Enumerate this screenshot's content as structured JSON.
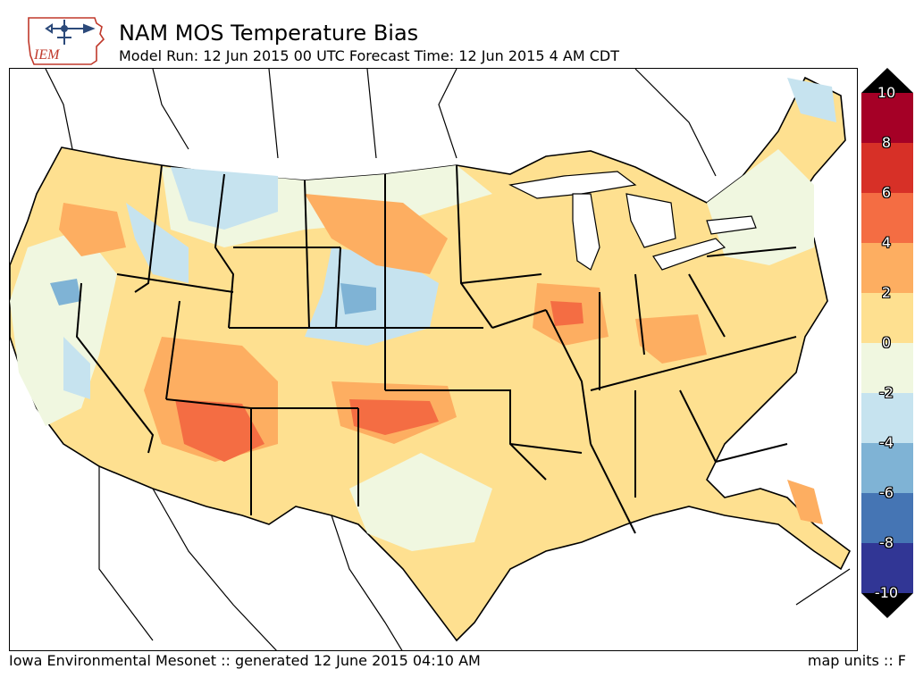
{
  "header": {
    "logo_text": "IEM",
    "title": "NAM MOS Temperature Bias",
    "subtitle": "Model Run: 12 Jun 2015 00 UTC Forecast Time: 12 Jun 2015 4 AM CDT"
  },
  "colorbar": {
    "labels": [
      "10",
      "8",
      "6",
      "4",
      "2",
      "0",
      "-2",
      "-4",
      "-6",
      "-8",
      "-10"
    ],
    "bins": [
      {
        "from": 8,
        "to": 10,
        "color": "#a50026"
      },
      {
        "from": 6,
        "to": 8,
        "color": "#d73027"
      },
      {
        "from": 4,
        "to": 6,
        "color": "#f46d43"
      },
      {
        "from": 2,
        "to": 4,
        "color": "#fdae61"
      },
      {
        "from": 0,
        "to": 2,
        "color": "#fee090"
      },
      {
        "from": -2,
        "to": 0,
        "color": "#f0f7e0"
      },
      {
        "from": -4,
        "to": -2,
        "color": "#c6e3ef"
      },
      {
        "from": -6,
        "to": -4,
        "color": "#7fb3d5"
      },
      {
        "from": -8,
        "to": -6,
        "color": "#4575b4"
      },
      {
        "from": -10,
        "to": -8,
        "color": "#313695"
      }
    ],
    "extend_color": "#000000"
  },
  "map": {
    "background": "#ffffff",
    "land_base_color": "#fee090",
    "border_color": "#000000"
  },
  "footer": {
    "left": "Iowa Environmental Mesonet :: generated 12 June 2015 04:10 AM",
    "right": "map units :: F"
  }
}
